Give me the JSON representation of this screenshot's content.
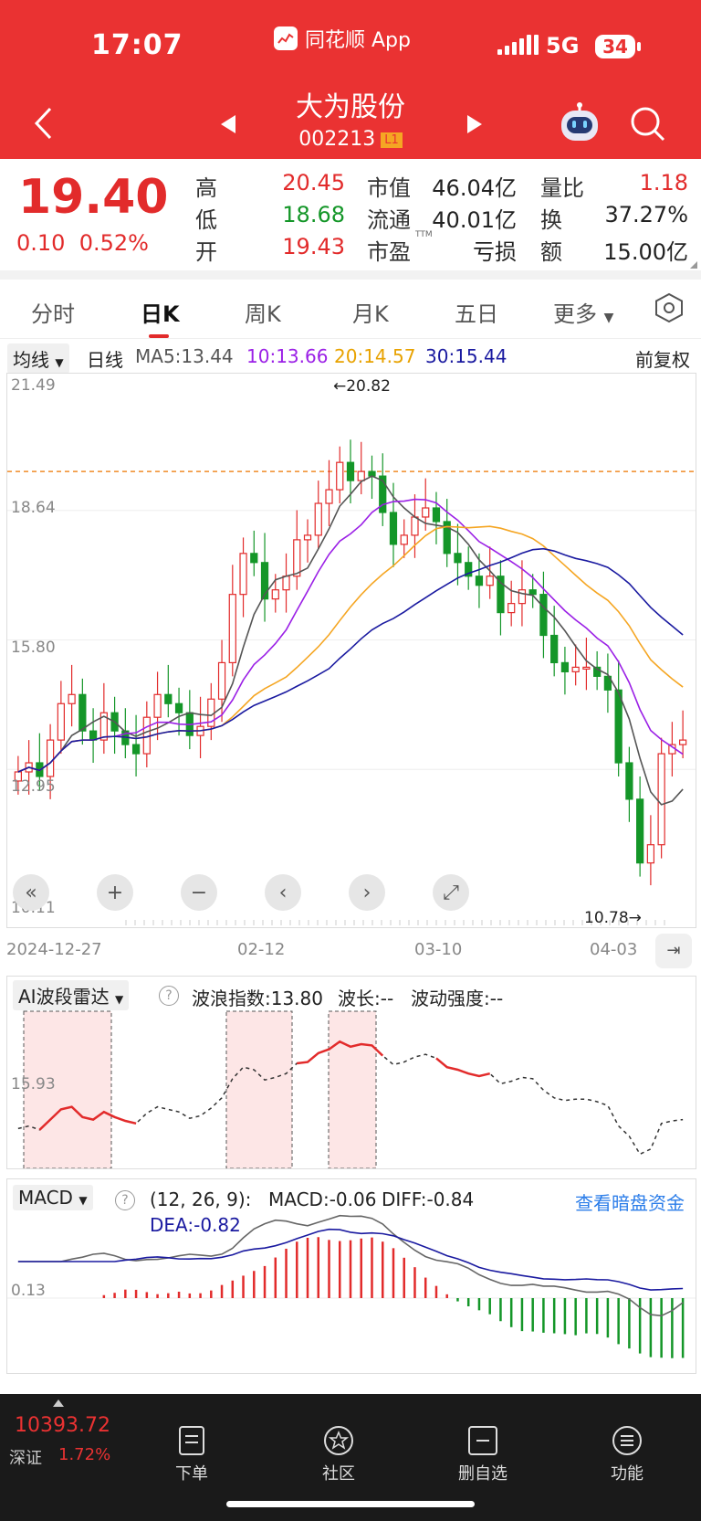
{
  "status_bar": {
    "time": "17:07",
    "app": "同花顺 App",
    "network": "5G",
    "battery": "34"
  },
  "header": {
    "stock_name": "大为股份",
    "stock_code": "002213",
    "badge": "L1"
  },
  "quote": {
    "price": "19.40",
    "change": "0.10",
    "change_pct": "0.52%",
    "rows": [
      {
        "l1": "高",
        "v1": "20.45",
        "l2": "市值",
        "v2": "46.04亿",
        "l3": "量比",
        "v3": "1.18"
      },
      {
        "l1": "低",
        "v1": "18.68",
        "l2": "流通",
        "v2": "40.01亿",
        "l3": "换",
        "v3": "37.27%"
      },
      {
        "l1": "开",
        "v1": "19.43",
        "l2": "市盈",
        "v2": "亏损",
        "l3": "额",
        "v3": "15.00亿"
      }
    ],
    "pe_suffix": "TTM"
  },
  "tabs": [
    "分时",
    "日K",
    "周K",
    "月K",
    "五日",
    "更多"
  ],
  "ma_bar": {
    "selector": "均线",
    "period": "日线",
    "ma5": "MA5:13.44",
    "ma10": "10:13.66",
    "ma20": "20:14.57",
    "ma30": "30:15.44",
    "adjust": "前复权"
  },
  "colors": {
    "accent": "#ea3232",
    "up": "#e22b2b",
    "down": "#149628",
    "ma5": "#555555",
    "ma10": "#9b20e6",
    "ma20": "#f5a623",
    "ma30": "#1a1aa0"
  },
  "kchart": {
    "y_ticks": [
      "21.49",
      "18.64",
      "15.80",
      "12.95",
      "10.11"
    ],
    "max_label": "←20.82",
    "min_label": "10.78→",
    "dates": [
      "2024-12-27",
      "02-12",
      "03-10",
      "04-03"
    ]
  },
  "ai_panel": {
    "selector": "AI波段雷达",
    "wave_index": "波浪指数:13.80",
    "wave_len": "波长:--",
    "wave_strength": "波动强度:--",
    "y_label": "15.93"
  },
  "macd_panel": {
    "selector": "MACD",
    "params": "(12, 26, 9):",
    "macd": "MACD:-0.06",
    "diff": "DIFF:-0.84",
    "dea": "DEA:-0.82",
    "link": "查看暗盘资金",
    "y_label": "0.13"
  },
  "footer": {
    "index_value": "10393.72",
    "index_name": "深证",
    "index_pct": "1.72%",
    "items": [
      "下单",
      "社区",
      "删自选",
      "功能"
    ]
  },
  "chart_data": {
    "type": "candlestick",
    "title": "大为股份 日K",
    "ylim": [
      10.11,
      21.49
    ],
    "x_range": [
      "2024-12-27",
      "04-03"
    ],
    "max": 20.82,
    "min": 10.78,
    "close": [
      12.9,
      13.1,
      12.8,
      13.6,
      14.4,
      14.6,
      13.8,
      13.6,
      14.2,
      13.8,
      13.5,
      13.3,
      14.1,
      14.6,
      14.4,
      14.2,
      13.7,
      13.9,
      14.5,
      15.3,
      16.8,
      17.7,
      17.5,
      16.7,
      16.9,
      17.2,
      18.0,
      18.1,
      18.8,
      19.1,
      19.7,
      19.3,
      19.5,
      19.4,
      18.6,
      17.9,
      18.1,
      18.5,
      18.7,
      18.4,
      17.7,
      17.5,
      17.2,
      17.0,
      17.2,
      16.4,
      16.6,
      16.9,
      16.8,
      15.9,
      15.3,
      15.1,
      15.2,
      15.2,
      15.0,
      14.7,
      13.1,
      12.3,
      10.9,
      11.3,
      13.3,
      13.5,
      13.6
    ],
    "ma_values": {
      "MA5": 13.44,
      "MA10": 13.66,
      "MA20": 14.57,
      "MA30": 15.44
    }
  }
}
